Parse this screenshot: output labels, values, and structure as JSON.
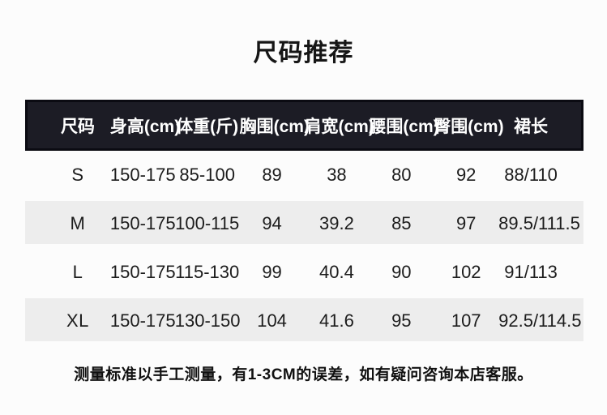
{
  "page": {
    "title": "尺码推荐",
    "footer_note": "测量标准以手工测量，有1-3CM的误差，如有疑问咨询本店客服。"
  },
  "size_table": {
    "headers": [
      "尺码",
      "身高(cm)",
      "体重(斤)",
      "胸围(cm)",
      "肩宽(cm)",
      "腰围(cm)",
      "臀围(cm)",
      "裙长"
    ],
    "rows": [
      {
        "cells": [
          "S",
          "150-175",
          "85-100",
          "89",
          "38",
          "80",
          "92",
          "88/110"
        ]
      },
      {
        "cells": [
          "M",
          "150-175",
          "100-115",
          "94",
          "39.2",
          "85",
          "97",
          "89.5/111.5"
        ]
      },
      {
        "cells": [
          "L",
          "150-175",
          "115-130",
          "99",
          "40.4",
          "90",
          "102",
          "91/113"
        ]
      },
      {
        "cells": [
          "XL",
          "150-175",
          "130-150",
          "104",
          "41.6",
          "95",
          "107",
          "92.5/114.5"
        ]
      }
    ]
  },
  "colors": {
    "header_bg": "#1c1c25",
    "header_border": "#0b0b12",
    "header_text": "#ffffff",
    "zebra_row_bg": "#ededed",
    "page_bg": "#fcfcfc",
    "text": "#1c1c1c"
  }
}
